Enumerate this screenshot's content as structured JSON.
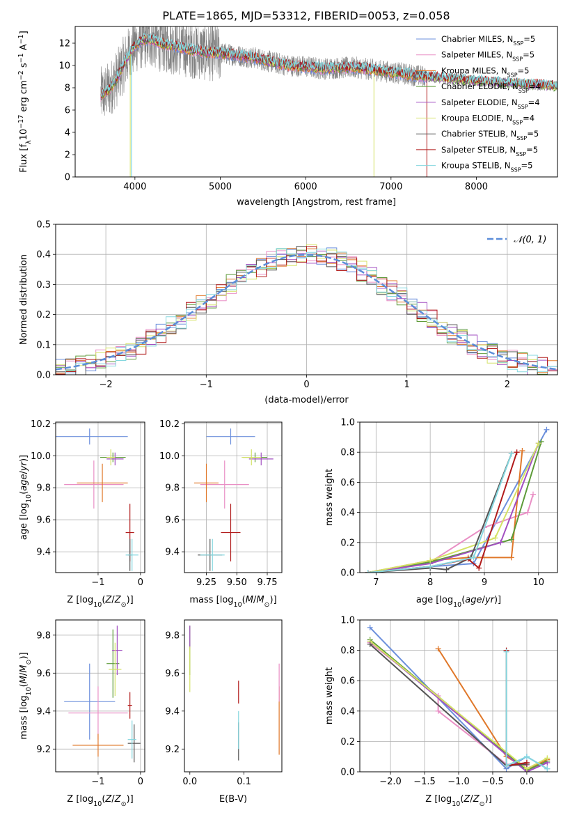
{
  "page": {
    "title": "PLATE=1865, MJD=53312, FIBERID=0053, z=0.058"
  },
  "colors": {
    "chabrier_miles": "#6b8fdc",
    "salpeter_miles": "#e98fc5",
    "kroupa_miles": "#e0782a",
    "chabrier_elodie": "#5e9b3a",
    "salpeter_elodie": "#a24fc1",
    "kroupa_elodie": "#d4e266",
    "chabrier_stelib": "#555555",
    "salpeter_stelib": "#b11b1b",
    "kroupa_stelib": "#85d7df",
    "data": "#808080",
    "normal": "#5b8dd9"
  },
  "legend": {
    "l1": "Chabrier MILES, N",
    "n1": "=5",
    "l2": "Salpeter MILES, N",
    "n2": "=5",
    "l3": "Kroupa MILES, N",
    "n3": "=5",
    "l4": "Chabrier ELODIE, N",
    "n4": "=4",
    "l5": "Salpeter ELODIE, N",
    "n5": "=4",
    "l6": "Kroupa ELODIE, N",
    "n6": "=4",
    "l7": "Chabrier STELIB, N",
    "n7": "=5",
    "l8": "Salpeter STELIB, N",
    "n8": "=5",
    "l9": "Kroupa STELIB, N",
    "n9": "=5",
    "sub": "SSP",
    "normal": "𝒩(0, 1)"
  },
  "chart_data": [
    {
      "id": "spectrum",
      "type": "line",
      "xlabel": "wavelength [Angstrom, rest frame]",
      "ylabel": "Flux [f_λ 10^-17 erg cm^-2 s^-1 A^-1]",
      "xlim": [
        3300,
        8950
      ],
      "ylim": [
        0,
        13.5
      ],
      "xticks": [
        4000,
        5000,
        6000,
        7000,
        8000
      ],
      "yticks": [
        0,
        2,
        4,
        6,
        8,
        10,
        12
      ],
      "grid": false,
      "legend_position": "top-right",
      "model_continuum": {
        "x": [
          3600,
          3700,
          3800,
          3900,
          4000,
          4100,
          4200,
          4300,
          4400,
          4600,
          4800,
          5000,
          5200,
          5400,
          5600,
          5800,
          6000,
          6200,
          6400,
          6600,
          6800,
          7000,
          7200,
          7400,
          7600,
          7800,
          8000,
          8200,
          8400,
          8600,
          8800,
          8950
        ],
        "y": [
          7.3,
          7.8,
          9.0,
          10.6,
          11.8,
          12.3,
          12.3,
          12.0,
          11.8,
          11.5,
          11.2,
          11.1,
          10.9,
          10.7,
          10.3,
          10.0,
          9.9,
          9.7,
          9.8,
          9.8,
          9.6,
          9.4,
          9.2,
          9.0,
          8.85,
          8.7,
          8.6,
          8.5,
          8.4,
          8.3,
          8.2,
          8.1
        ]
      },
      "spikes_to_zero": [
        3950,
        6800,
        7420
      ]
    },
    {
      "id": "residuals",
      "type": "step",
      "xlabel": "(data-model)/error",
      "ylabel": "Normed distribution",
      "xlim": [
        -2.5,
        2.5
      ],
      "ylim": [
        0,
        0.5
      ],
      "xticks": [
        -2,
        -1,
        0,
        1,
        2
      ],
      "yticks": [
        0.0,
        0.1,
        0.2,
        0.3,
        0.4,
        0.5
      ],
      "grid": true,
      "legend_position": "top-right",
      "bin_width": 0.1
    },
    {
      "id": "z_vs_age",
      "type": "scatter",
      "xlabel": "Z [log10(Z/Z☉)]",
      "ylabel": "age [log10(age/yr)]",
      "xlim": [
        -2.0,
        0.1
      ],
      "ylim": [
        9.27,
        10.21
      ],
      "xticks": [
        -1,
        0
      ],
      "yticks": [
        9.4,
        9.6,
        9.8,
        10.0,
        10.2
      ],
      "grid": true,
      "points": [
        {
          "series": "chabrier_miles",
          "x": -1.2,
          "y": 10.12,
          "xerr": 0.9,
          "yerr": 0.05
        },
        {
          "series": "salpeter_miles",
          "x": -1.1,
          "y": 9.82,
          "xerr": 0.7,
          "yerr": 0.15
        },
        {
          "series": "kroupa_miles",
          "x": -0.9,
          "y": 9.83,
          "xerr": 0.6,
          "yerr": 0.12
        },
        {
          "series": "chabrier_elodie",
          "x": -0.65,
          "y": 9.99,
          "xerr": 0.3,
          "yerr": 0.03
        },
        {
          "series": "salpeter_elodie",
          "x": -0.6,
          "y": 9.98,
          "xerr": 0.2,
          "yerr": 0.04
        },
        {
          "series": "kroupa_elodie",
          "x": -0.7,
          "y": 9.99,
          "xerr": 0.1,
          "yerr": 0.05
        },
        {
          "series": "salpeter_stelib",
          "x": -0.25,
          "y": 9.52,
          "xerr": 0.1,
          "yerr": 0.18
        },
        {
          "series": "chabrier_stelib",
          "x": -0.25,
          "y": 9.38,
          "xerr": 0.05,
          "yerr": 0.1
        },
        {
          "series": "kroupa_stelib",
          "x": -0.2,
          "y": 9.38,
          "xerr": 0.15,
          "yerr": 0.1
        }
      ]
    },
    {
      "id": "mass_vs_age",
      "type": "scatter",
      "xlabel": "mass [log10(M/M☉)]",
      "ylabel": "",
      "xlim": [
        9.07,
        9.87
      ],
      "ylim": [
        9.27,
        10.21
      ],
      "xticks": [
        9.25,
        9.5,
        9.75
      ],
      "yticks": [
        9.4,
        9.6,
        9.8,
        10.0,
        10.2
      ],
      "grid": true,
      "points": [
        {
          "series": "chabrier_miles",
          "x": 9.45,
          "y": 10.12,
          "xerr": 0.2,
          "yerr": 0.05
        },
        {
          "series": "salpeter_miles",
          "x": 9.4,
          "y": 9.82,
          "xerr": 0.2,
          "yerr": 0.15
        },
        {
          "series": "kroupa_miles",
          "x": 9.25,
          "y": 9.83,
          "xerr": 0.1,
          "yerr": 0.12
        },
        {
          "series": "chabrier_elodie",
          "x": 9.65,
          "y": 9.99,
          "xerr": 0.1,
          "yerr": 0.03
        },
        {
          "series": "salpeter_elodie",
          "x": 9.7,
          "y": 9.98,
          "xerr": 0.1,
          "yerr": 0.04
        },
        {
          "series": "kroupa_elodie",
          "x": 9.62,
          "y": 9.99,
          "xerr": 0.08,
          "yerr": 0.05
        },
        {
          "series": "salpeter_stelib",
          "x": 9.45,
          "y": 9.52,
          "xerr": 0.08,
          "yerr": 0.18
        },
        {
          "series": "chabrier_stelib",
          "x": 9.28,
          "y": 9.38,
          "xerr": 0.1,
          "yerr": 0.1
        },
        {
          "series": "kroupa_stelib",
          "x": 9.3,
          "y": 9.38,
          "xerr": 0.1,
          "yerr": 0.1
        }
      ]
    },
    {
      "id": "age_weights",
      "type": "line",
      "xlabel": "age [log10(age/yr)]",
      "ylabel": "mass weight",
      "xlim": [
        6.7,
        10.35
      ],
      "ylim": [
        0,
        1.0
      ],
      "xticks": [
        7,
        8,
        9,
        10
      ],
      "yticks": [
        0.0,
        0.2,
        0.4,
        0.6,
        0.8,
        1.0
      ],
      "grid": true,
      "series": [
        {
          "key": "chabrier_miles",
          "x": [
            6.85,
            8.0,
            8.8,
            10.15
          ],
          "y": [
            0.0,
            0.04,
            0.06,
            0.95
          ]
        },
        {
          "key": "salpeter_miles",
          "x": [
            6.85,
            8.0,
            9.0,
            9.8,
            9.9
          ],
          "y": [
            0.0,
            0.07,
            0.3,
            0.4,
            0.52
          ]
        },
        {
          "key": "kroupa_miles",
          "x": [
            6.85,
            8.0,
            8.7,
            9.5,
            9.7
          ],
          "y": [
            0.0,
            0.08,
            0.1,
            0.1,
            0.81
          ]
        },
        {
          "key": "chabrier_elodie",
          "x": [
            6.85,
            8.0,
            9.5,
            10.05
          ],
          "y": [
            0.0,
            0.07,
            0.22,
            0.87
          ]
        },
        {
          "key": "salpeter_elodie",
          "x": [
            6.85,
            8.0,
            9.3,
            10.0
          ],
          "y": [
            0.0,
            0.06,
            0.2,
            0.86
          ]
        },
        {
          "key": "kroupa_elodie",
          "x": [
            6.85,
            8.0,
            9.2,
            10.0
          ],
          "y": [
            0.0,
            0.08,
            0.23,
            0.86
          ]
        },
        {
          "key": "chabrier_stelib",
          "x": [
            6.85,
            8.0,
            8.3,
            8.75,
            9.5
          ],
          "y": [
            0.0,
            0.03,
            0.02,
            0.1,
            0.79
          ]
        },
        {
          "key": "salpeter_stelib",
          "x": [
            6.85,
            8.0,
            8.7,
            8.9,
            9.6
          ],
          "y": [
            0.0,
            0.04,
            0.09,
            0.03,
            0.8
          ]
        },
        {
          "key": "kroupa_stelib",
          "x": [
            6.85,
            8.0,
            8.8,
            9.5
          ],
          "y": [
            0.0,
            0.04,
            0.1,
            0.79
          ]
        }
      ]
    },
    {
      "id": "z_vs_mass",
      "type": "scatter",
      "xlabel": "Z [log10(Z/Z☉)]",
      "ylabel": "mass [log10(M/M☉)]",
      "xlim": [
        -2.0,
        0.1
      ],
      "ylim": [
        9.08,
        9.88
      ],
      "xticks": [
        -1,
        0
      ],
      "yticks": [
        9.2,
        9.4,
        9.6,
        9.8
      ],
      "grid": true,
      "points": [
        {
          "series": "chabrier_miles",
          "x": -1.2,
          "y": 9.45,
          "xerr": 0.6,
          "yerr": 0.2
        },
        {
          "series": "salpeter_miles",
          "x": -1.0,
          "y": 9.39,
          "xerr": 0.7,
          "yerr": 0.14
        },
        {
          "series": "kroupa_miles",
          "x": -1.0,
          "y": 9.22,
          "xerr": 0.6,
          "yerr": 0.06
        },
        {
          "series": "chabrier_elodie",
          "x": -0.65,
          "y": 9.65,
          "xerr": 0.15,
          "yerr": 0.18
        },
        {
          "series": "salpeter_elodie",
          "x": -0.55,
          "y": 9.72,
          "xerr": 0.12,
          "yerr": 0.13
        },
        {
          "series": "kroupa_elodie",
          "x": -0.6,
          "y": 9.62,
          "xerr": 0.15,
          "yerr": 0.14
        },
        {
          "series": "salpeter_stelib",
          "x": -0.25,
          "y": 9.43,
          "xerr": 0.05,
          "yerr": 0.07
        },
        {
          "series": "chabrier_stelib",
          "x": -0.15,
          "y": 9.23,
          "xerr": 0.15,
          "yerr": 0.1
        },
        {
          "series": "kroupa_stelib",
          "x": -0.2,
          "y": 9.25,
          "xerr": 0.1,
          "yerr": 0.1
        }
      ]
    },
    {
      "id": "ebv_vs_mass",
      "type": "scatter",
      "xlabel": "E(B-V)",
      "ylabel": "",
      "xlim": [
        -0.01,
        0.17
      ],
      "ylim": [
        9.08,
        9.88
      ],
      "xticks": [
        0.0,
        0.1
      ],
      "yticks": [
        9.2,
        9.4,
        9.6,
        9.8
      ],
      "grid": false,
      "points": [
        {
          "series": "chabrier_elodie",
          "x": 0.0,
          "y": 9.72,
          "xerr": 0,
          "yerr": 0.13
        },
        {
          "series": "salpeter_elodie",
          "x": 0.0,
          "y": 9.79,
          "xerr": 0,
          "yerr": 0.06
        },
        {
          "series": "kroupa_elodie",
          "x": 0.0,
          "y": 9.62,
          "xerr": 0,
          "yerr": 0.12
        },
        {
          "series": "salpeter_stelib",
          "x": 0.09,
          "y": 9.5,
          "xerr": 0,
          "yerr": 0.06
        },
        {
          "series": "chabrier_stelib",
          "x": 0.09,
          "y": 9.24,
          "xerr": 0,
          "yerr": 0.1
        },
        {
          "series": "kroupa_stelib",
          "x": 0.09,
          "y": 9.3,
          "xerr": 0,
          "yerr": 0.1
        },
        {
          "series": "kroupa_miles",
          "x": 0.165,
          "y": 9.35,
          "xerr": 0,
          "yerr": 0.18
        },
        {
          "series": "salpeter_miles",
          "x": 0.165,
          "y": 9.55,
          "xerr": 0,
          "yerr": 0.1
        }
      ]
    },
    {
      "id": "z_weights",
      "type": "line",
      "xlabel": "Z [log10(Z/Z☉)]",
      "ylabel": "mass weight",
      "xlim": [
        -2.45,
        0.45
      ],
      "ylim": [
        0,
        1.0
      ],
      "xticks": [
        -2.0,
        -1.5,
        -1.0,
        -0.5,
        0.0
      ],
      "yticks": [
        0.0,
        0.2,
        0.4,
        0.6,
        0.8,
        1.0
      ],
      "grid": true,
      "series": [
        {
          "key": "chabrier_miles",
          "x": [
            -2.3,
            -0.3,
            0.0,
            0.3
          ],
          "y": [
            0.95,
            0.02,
            0.1,
            0.02
          ]
        },
        {
          "key": "salpeter_miles",
          "x": [
            -2.3,
            -1.3,
            -1.3,
            -0.3,
            0.0
          ],
          "y": [
            0.85,
            0.5,
            0.4,
            0.05,
            0.04
          ]
        },
        {
          "key": "kroupa_miles",
          "x": [
            -1.3,
            -0.3,
            0.0,
            0.3
          ],
          "y": [
            0.81,
            0.1,
            0.02,
            0.08
          ]
        },
        {
          "key": "chabrier_elodie",
          "x": [
            -2.3,
            0.0,
            0.3
          ],
          "y": [
            0.87,
            0.01,
            0.07
          ]
        },
        {
          "key": "salpeter_elodie",
          "x": [
            -2.3,
            0.0,
            0.3
          ],
          "y": [
            0.86,
            0.0,
            0.06
          ]
        },
        {
          "key": "kroupa_elodie",
          "x": [
            -2.3,
            0.0,
            0.3
          ],
          "y": [
            0.86,
            0.02,
            0.09
          ]
        },
        {
          "key": "chabrier_stelib",
          "x": [
            -2.3,
            -0.3,
            0.0
          ],
          "y": [
            0.84,
            0.04,
            0.05
          ]
        },
        {
          "key": "salpeter_stelib",
          "x": [
            -0.3,
            -0.3,
            0.0
          ],
          "y": [
            0.8,
            0.04,
            0.06
          ]
        },
        {
          "key": "kroupa_stelib",
          "x": [
            -0.3,
            -0.3,
            0.0,
            0.3
          ],
          "y": [
            0.79,
            0.04,
            0.1,
            0.02
          ]
        }
      ]
    }
  ]
}
